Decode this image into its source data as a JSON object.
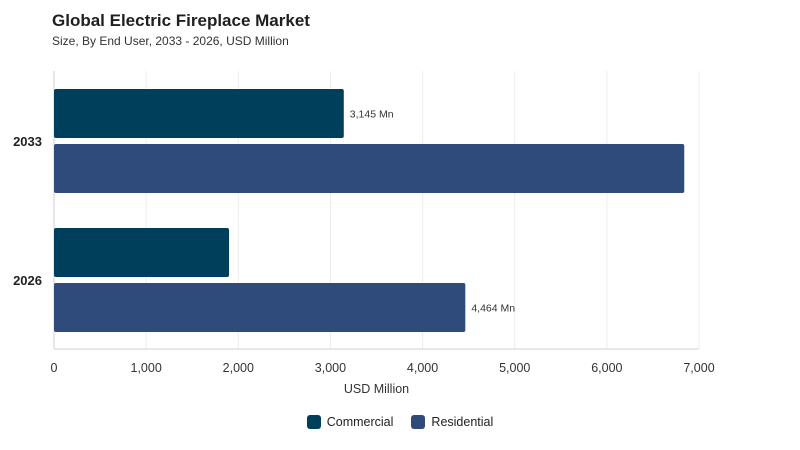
{
  "header": {
    "title": "Global Electric Fireplace Market",
    "subtitle": "Size, By End User, 2033 - 2026, USD Million"
  },
  "chart_data": {
    "type": "bar",
    "orientation": "horizontal",
    "categories": [
      "2033",
      "2026"
    ],
    "series": [
      {
        "name": "Commercial",
        "color": "#003f5c",
        "values": [
          3145,
          1900
        ],
        "labels": [
          "3,145 Mn",
          ""
        ]
      },
      {
        "name": "Residential",
        "color": "#2f4b7c",
        "values": [
          6840,
          4464
        ],
        "labels": [
          "",
          "4,464 Mn"
        ]
      }
    ],
    "xlabel": "USD Million",
    "ylabel": "",
    "xlim": [
      0,
      7000
    ],
    "xticks": [
      0,
      1000,
      2000,
      3000,
      4000,
      5000,
      6000,
      7000
    ],
    "xtick_labels": [
      "0",
      "1,000",
      "2,000",
      "3,000",
      "4,000",
      "5,000",
      "6,000",
      "7,000"
    ],
    "grid": true,
    "legend_position": "bottom"
  }
}
